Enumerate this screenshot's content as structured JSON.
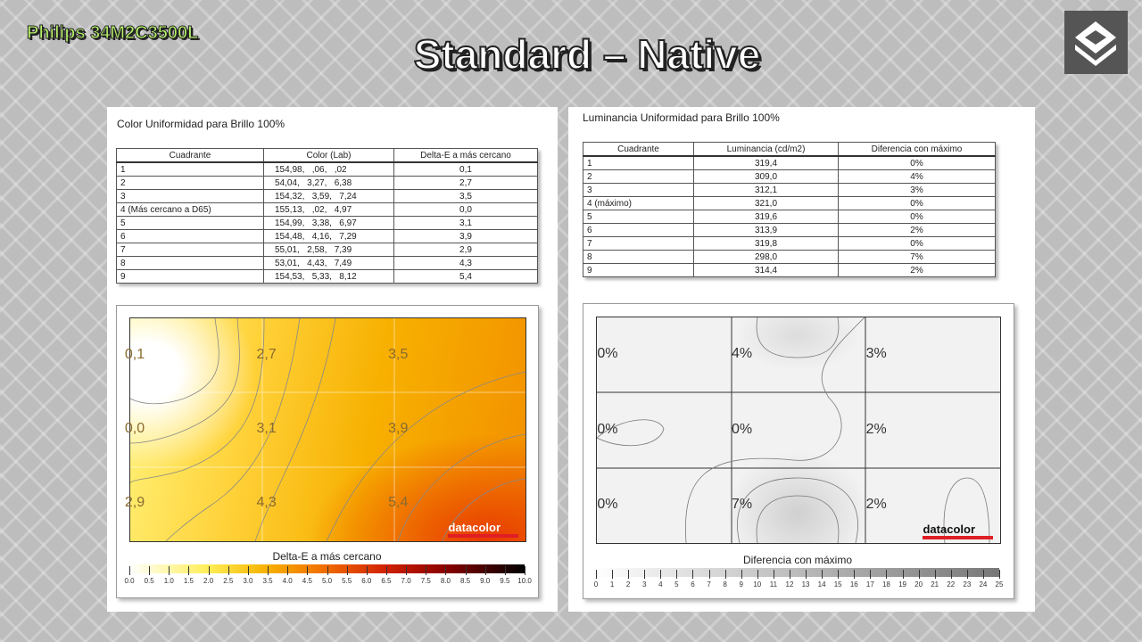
{
  "header": {
    "brand": "Philips 34M2C3500L",
    "title": "Standard – Native"
  },
  "color_panel": {
    "title": "Color Uniformidad para Brillo 100%",
    "table": {
      "columns": [
        "Cuadrante",
        "Color (Lab)",
        "Delta-E a más cercano"
      ],
      "rows": [
        [
          "1",
          "154,98,   ,06,   ,02",
          "0,1"
        ],
        [
          "2",
          "54,04,   3,27,   6,38",
          "2,7"
        ],
        [
          "3",
          "154,32,   3,59,   7,24",
          "3,5"
        ],
        [
          "4 (Más cercano a D65)",
          "155,13,   ,02,   4,97",
          "0,0"
        ],
        [
          "5",
          "154,99,   3,38,   6,97",
          "3,1"
        ],
        [
          "6",
          "154,48,   4,16,   7,29",
          "3,9"
        ],
        [
          "7",
          "55,01,   2,58,   7,39",
          "2,9"
        ],
        [
          "8",
          "53,01,   4,43,   7,49",
          "4,3"
        ],
        [
          "9",
          "154,53,   5,33,   8,12",
          "5,4"
        ]
      ]
    },
    "map": {
      "cells": [
        "0,1",
        "2,7",
        "3,5",
        "0,0",
        "3,1",
        "3,9",
        "2,9",
        "4,3",
        "5,4"
      ],
      "brand": "datacolor"
    },
    "scale": {
      "title": "Delta-E a más cercano",
      "labels": [
        "0.0",
        "0.5",
        "1.0",
        "1.5",
        "2.0",
        "2.5",
        "3.0",
        "3.5",
        "4.0",
        "4.5",
        "5.0",
        "5.5",
        "6.0",
        "6.5",
        "7.0",
        "7.5",
        "8.0",
        "8.5",
        "9.0",
        "9.5",
        "10.0"
      ]
    }
  },
  "luminance_panel": {
    "title": "Luminancia Uniformidad para Brillo 100%",
    "table": {
      "columns": [
        "Cuadrante",
        "Luminancia (cd/m2)",
        "Diferencia con máximo"
      ],
      "rows": [
        [
          "1",
          "319,4",
          "0%"
        ],
        [
          "2",
          "309,0",
          "4%"
        ],
        [
          "3",
          "312,1",
          "3%"
        ],
        [
          "4 (máximo)",
          "321,0",
          "0%"
        ],
        [
          "5",
          "319,6",
          "0%"
        ],
        [
          "6",
          "313,9",
          "2%"
        ],
        [
          "7",
          "319,8",
          "0%"
        ],
        [
          "8",
          "298,0",
          "7%"
        ],
        [
          "9",
          "314,4",
          "2%"
        ]
      ]
    },
    "map": {
      "cells": [
        "0%",
        "4%",
        "3%",
        "0%",
        "0%",
        "2%",
        "0%",
        "7%",
        "2%"
      ],
      "brand": "datacolor"
    },
    "scale": {
      "title": "Diferencia con máximo",
      "labels": [
        "0",
        "1",
        "2",
        "3",
        "4",
        "5",
        "6",
        "7",
        "8",
        "9",
        "10",
        "11",
        "12",
        "13",
        "14",
        "15",
        "16",
        "17",
        "18",
        "19",
        "20",
        "21",
        "22",
        "23",
        "24",
        "25"
      ]
    }
  }
}
